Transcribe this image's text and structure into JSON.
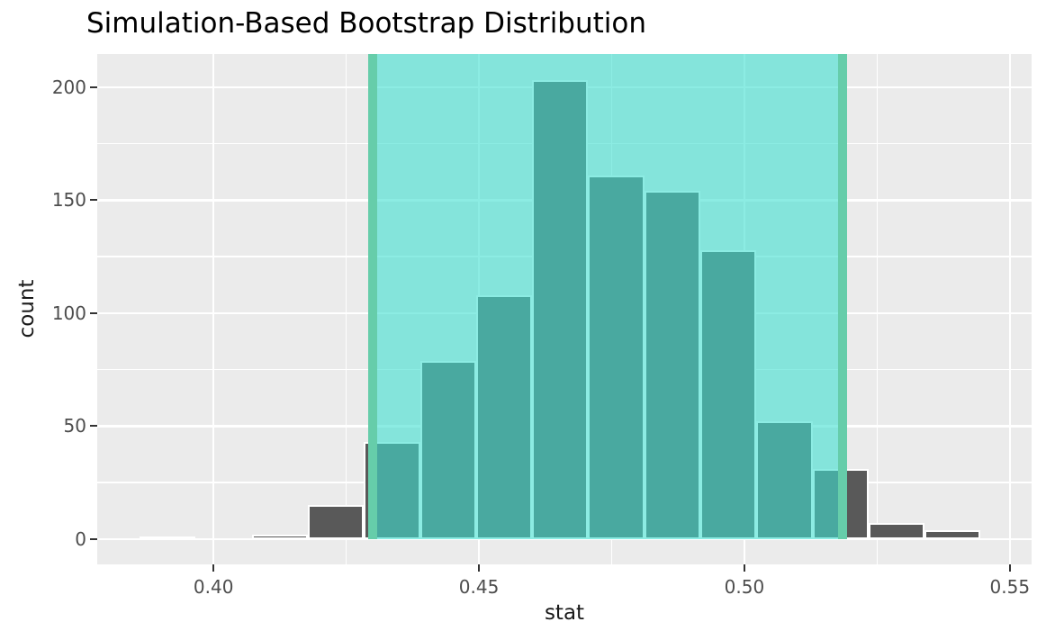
{
  "title": "Simulation-Based Bootstrap Distribution",
  "x_axis": {
    "label": "stat",
    "tick_labels": [
      "0.40",
      "0.45",
      "0.50",
      "0.55"
    ],
    "tick_values": [
      0.4,
      0.45,
      0.5,
      0.55
    ],
    "minor_values": [
      0.425,
      0.475,
      0.525
    ],
    "domain": [
      0.3781,
      0.5541
    ]
  },
  "y_axis": {
    "label": "count",
    "tick_labels": [
      "0",
      "50",
      "100",
      "150",
      "200"
    ],
    "tick_values": [
      0,
      50,
      100,
      150,
      200
    ],
    "minor_values": [
      25,
      75,
      125,
      175
    ],
    "domain": [
      -11.2,
      214.7
    ]
  },
  "chart_data": {
    "type": "bar",
    "subtype": "histogram",
    "title": "Simulation-Based Bootstrap Distribution",
    "xlabel": "stat",
    "ylabel": "count",
    "bin_start": 0.3861,
    "bin_width": 0.01056,
    "counts": [
      1,
      0,
      2,
      15,
      43,
      79,
      108,
      203,
      161,
      154,
      128,
      52,
      31,
      7,
      4
    ],
    "confidence_interval": [
      0.43,
      0.5185
    ],
    "xlim": [
      0.3781,
      0.5541
    ],
    "ylim": [
      -11.2,
      214.7
    ],
    "grid": "on",
    "legend": "none"
  },
  "colors": {
    "panel_bg": "#EBEBEB",
    "grid": "#FFFFFF",
    "bar_fill": "#595959",
    "bar_border": "#FFFFFF",
    "ci_fill": "#40E0D0",
    "ci_alpha": 0.6,
    "ci_line": "#66CDAA",
    "tick_text": "#4D4D4D",
    "axis_title_text": "#1a1a1a",
    "title_text": "#000000"
  }
}
